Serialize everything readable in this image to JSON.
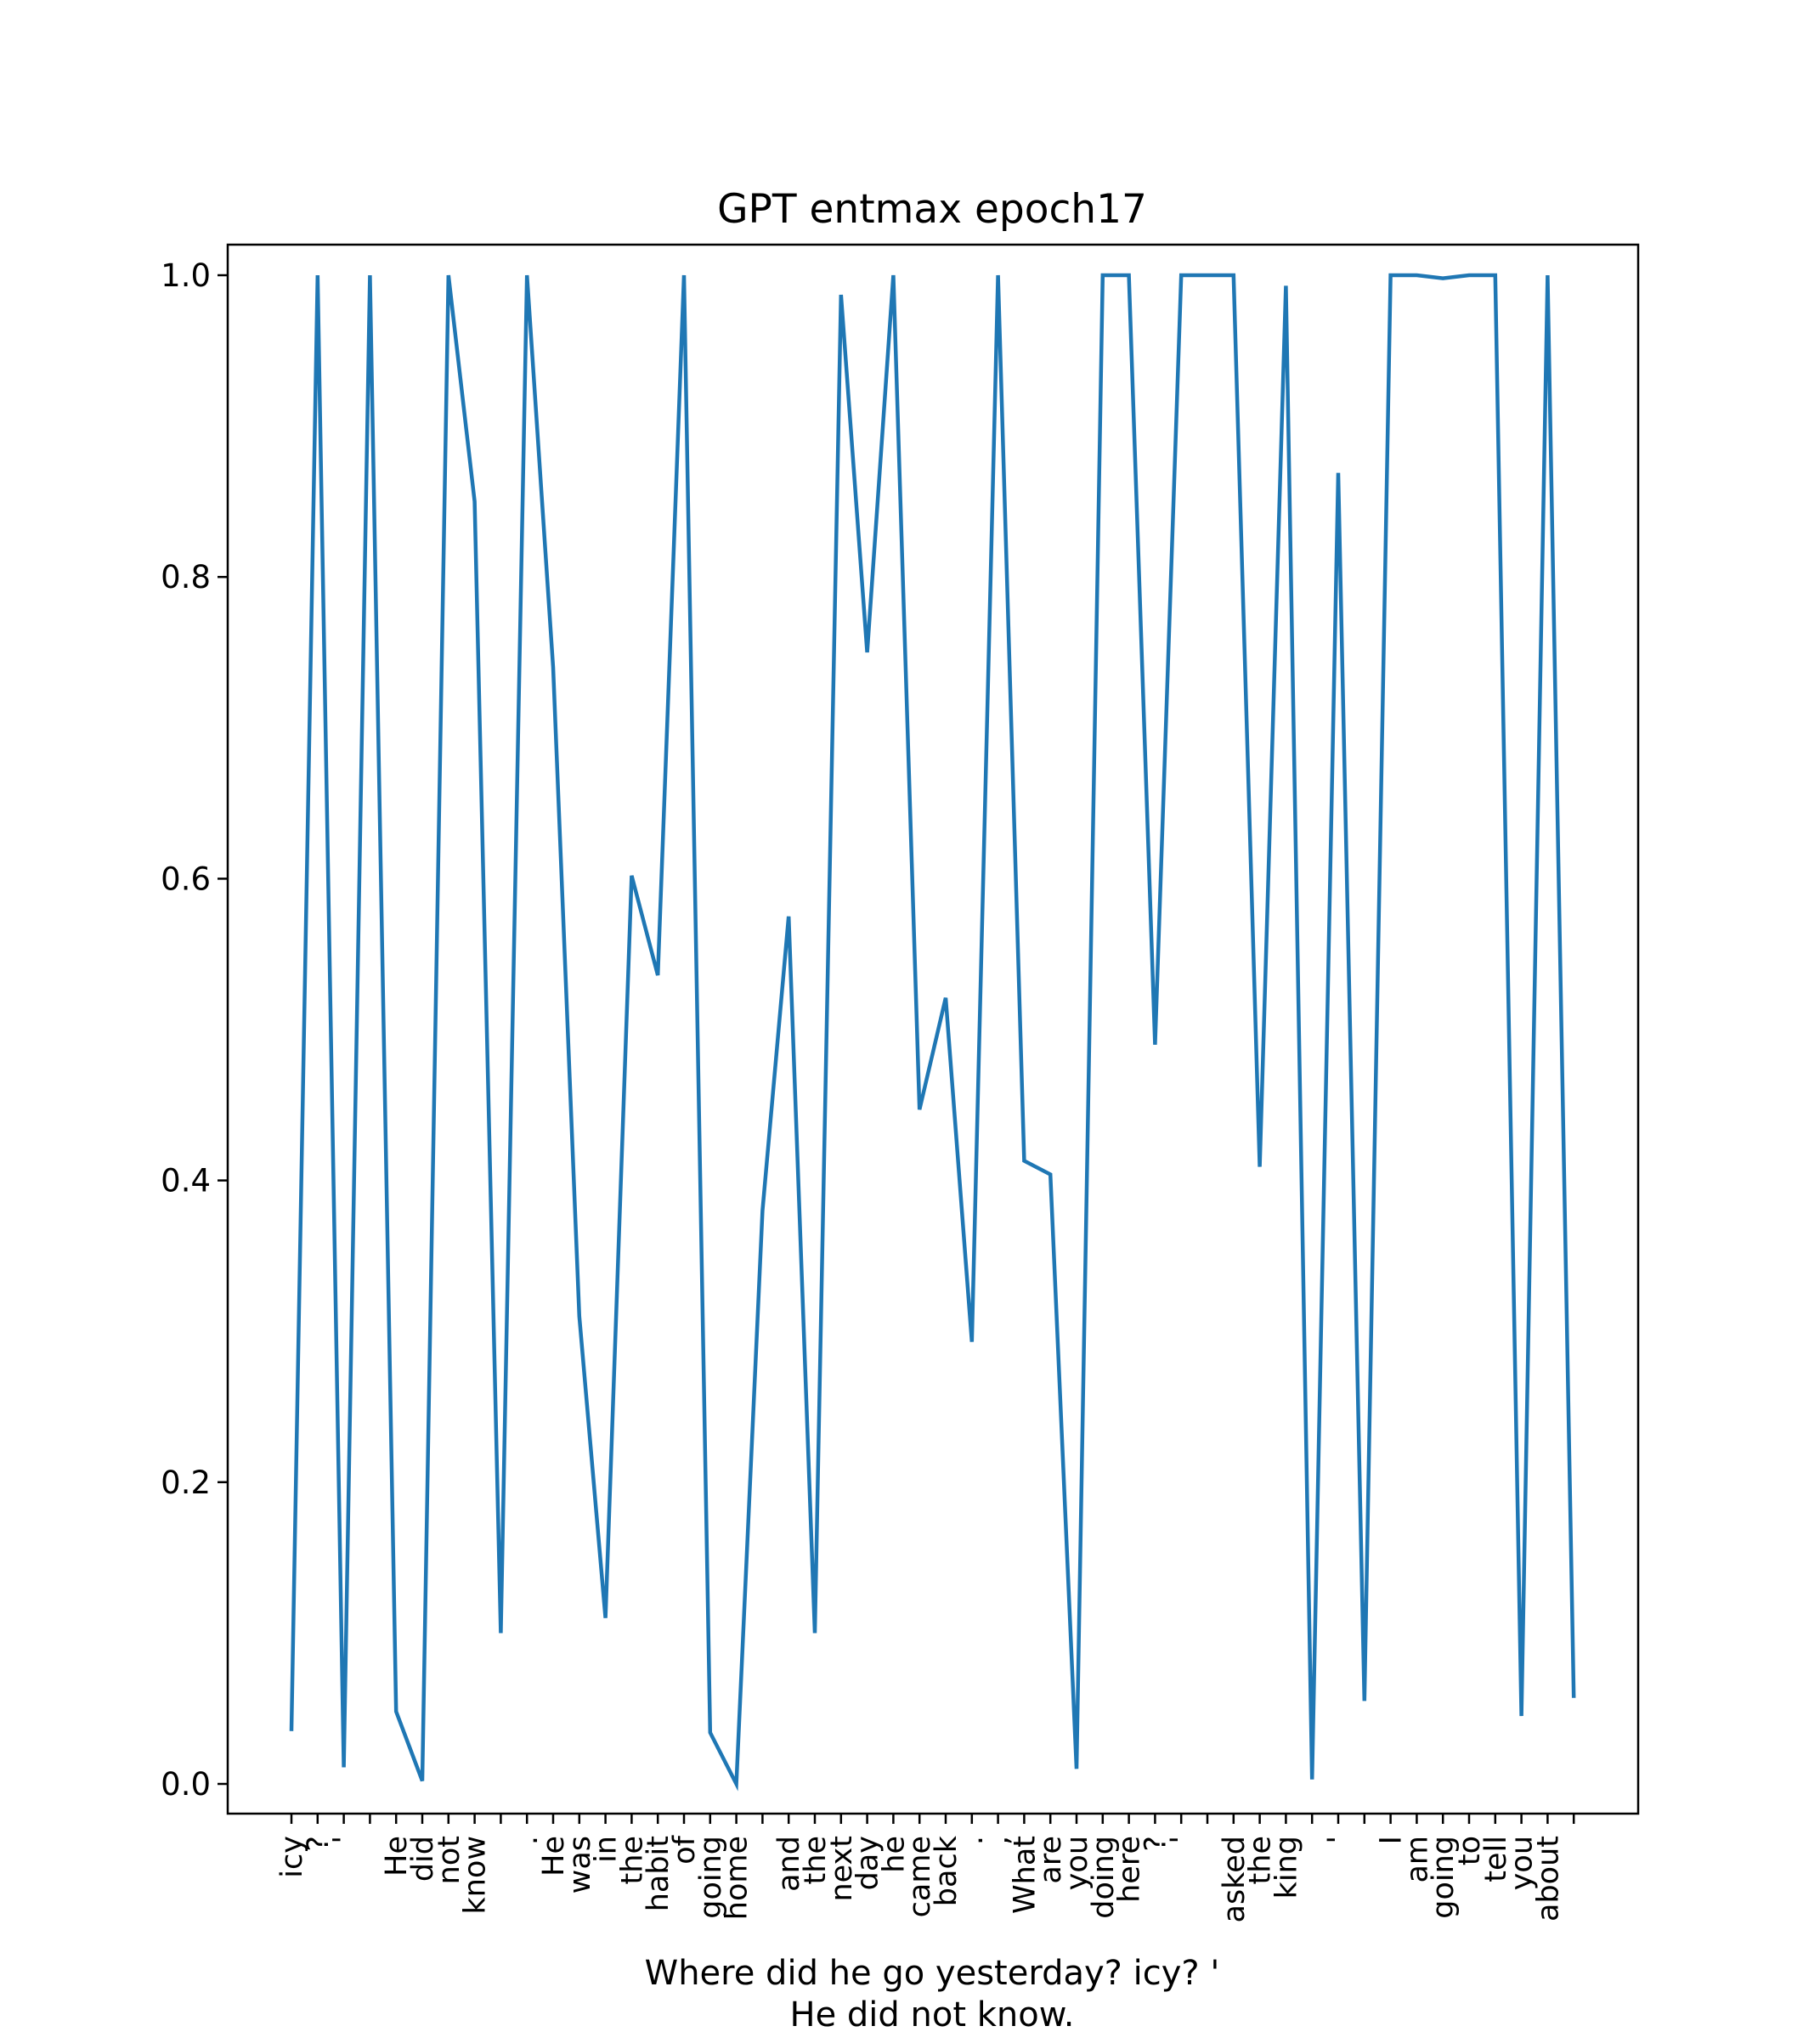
{
  "chart_data": {
    "type": "line",
    "title": "GPT entmax epoch17",
    "xlabel_lines": [
      "Where did he go yesterday? icy? '",
      "He did not know."
    ],
    "ylabel": "",
    "ylim": [
      -0.02,
      1.02
    ],
    "yticks": [
      "0.0",
      "0.2",
      "0.4",
      "0.6",
      "0.8",
      "1.0"
    ],
    "grid": false,
    "legend": "none",
    "line_color": "#1f77b4",
    "categories": [
      "icy",
      "?",
      "'",
      "",
      "He",
      "did",
      "not",
      "know",
      "",
      ".",
      "He",
      "was",
      "in",
      "the",
      "habit",
      "of",
      "going",
      "home",
      "",
      "and",
      "the",
      "next",
      "day",
      "he",
      "came",
      "back",
      ".",
      ",",
      "What",
      "are",
      "you",
      "doing",
      "here",
      "?",
      "'",
      "",
      "asked",
      "the",
      "king",
      "",
      "'",
      "",
      "I",
      "am",
      "going",
      "to",
      "tell",
      "you",
      "about",
      ""
    ],
    "series": [
      {
        "values": [
          0.035,
          1.0,
          0.011,
          1.0,
          0.048,
          0.002,
          1.0,
          0.85,
          0.1,
          1.0,
          0.74,
          0.31,
          0.11,
          0.602,
          0.536,
          1.0,
          0.034,
          0.0,
          0.38,
          0.575,
          0.1,
          0.987,
          0.75,
          1.0,
          0.447,
          0.521,
          0.293,
          1.0,
          0.413,
          0.404,
          0.01,
          1.0,
          1.0,
          0.49,
          1.0,
          1.0,
          1.0,
          0.409,
          0.993,
          0.003,
          0.869,
          0.055,
          1.0,
          1.0,
          0.998,
          1.0,
          1.0,
          0.045,
          1.0,
          0.057
        ]
      }
    ]
  }
}
